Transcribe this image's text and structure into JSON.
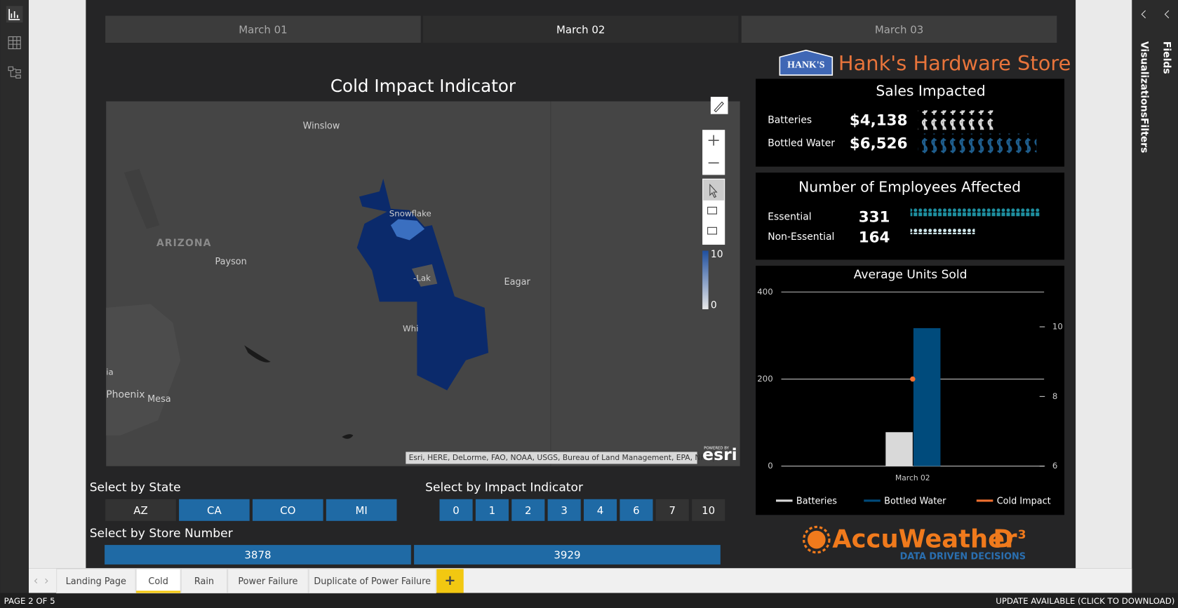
{
  "status": {
    "page": "PAGE 2 OF 5",
    "update": "UPDATE AVAILABLE (CLICK TO DOWNLOAD)"
  },
  "panes": {
    "visualizations": "Visualizations",
    "filters": "Filters",
    "fields": "Fields"
  },
  "date_tabs": {
    "labels": [
      "March 01",
      "March 02",
      "March 03"
    ],
    "active": 1
  },
  "brand": {
    "logo": "HANK'S",
    "name": "Hank's Hardware Store"
  },
  "map": {
    "title": "Cold Impact Indicator",
    "places": [
      "Winslow",
      "ARIZONA",
      "Payson",
      "Snowflake",
      "-Lak",
      "Eagar",
      "Whi",
      "ia",
      "Phoenix",
      "Mesa"
    ],
    "legend": {
      "max": 10,
      "min": 0
    },
    "attribution": "Esri, HERE, DeLorme, FAO, NOAA, USGS, Bureau of Land Management, EPA, NPS | ...",
    "powered": "POWERED BY",
    "esri": "esri"
  },
  "sales": {
    "title": "Sales Impacted",
    "labels": [
      "Batteries",
      "Bottled Water"
    ],
    "values": [
      4138,
      6526
    ],
    "value_labels": [
      "$4,138",
      "$6,526"
    ],
    "colors": [
      "#d9d9d9",
      "#1f5f8f"
    ]
  },
  "employees": {
    "title": "Number of Employees Affected",
    "labels": [
      "Essential",
      "Non-Essential"
    ],
    "values": [
      331,
      164
    ],
    "colors": [
      "#1e8fa0",
      "#cfe6ea"
    ]
  },
  "chart_data": {
    "type": "bar",
    "title": "Average Units Sold",
    "categories": [
      "March 02"
    ],
    "series": [
      {
        "name": "Batteries",
        "color": "#d9d9d9",
        "values": [
          78
        ]
      },
      {
        "name": "Bottled Water",
        "color": "#004b7c",
        "values": [
          317
        ]
      },
      {
        "name": "Cold Impact",
        "color": "#f07030",
        "values": [
          8.5
        ],
        "axis": "y2"
      }
    ],
    "ylim": [
      0,
      400
    ],
    "yticks": [
      0,
      200,
      400
    ],
    "y2lim": [
      6,
      11
    ],
    "y2ticks": [
      6,
      8,
      10
    ],
    "grid": true,
    "legend": "bottom"
  },
  "slicers": {
    "state": {
      "title": "Select by State",
      "options": [
        "AZ",
        "CA",
        "CO",
        "MI"
      ],
      "selected": [
        false,
        true,
        true,
        true
      ]
    },
    "impact": {
      "title": "Select by Impact Indicator",
      "options": [
        0,
        1,
        2,
        3,
        4,
        6,
        7,
        10
      ],
      "selected": [
        true,
        true,
        true,
        true,
        true,
        true,
        false,
        false
      ]
    },
    "store": {
      "title": "Select by Store Number",
      "options": [
        3878,
        3929
      ],
      "selected": [
        true,
        true
      ]
    }
  },
  "accuweather": {
    "name": "AccuWeather",
    "mark": "D",
    "sup": "3",
    "tagline": "DATA DRIVEN DECISIONS"
  },
  "page_tabs": {
    "labels": [
      "Landing Page",
      "Cold",
      "Rain",
      "Power Failure",
      "Duplicate of Power Failure"
    ],
    "active": 1,
    "add": "+"
  }
}
